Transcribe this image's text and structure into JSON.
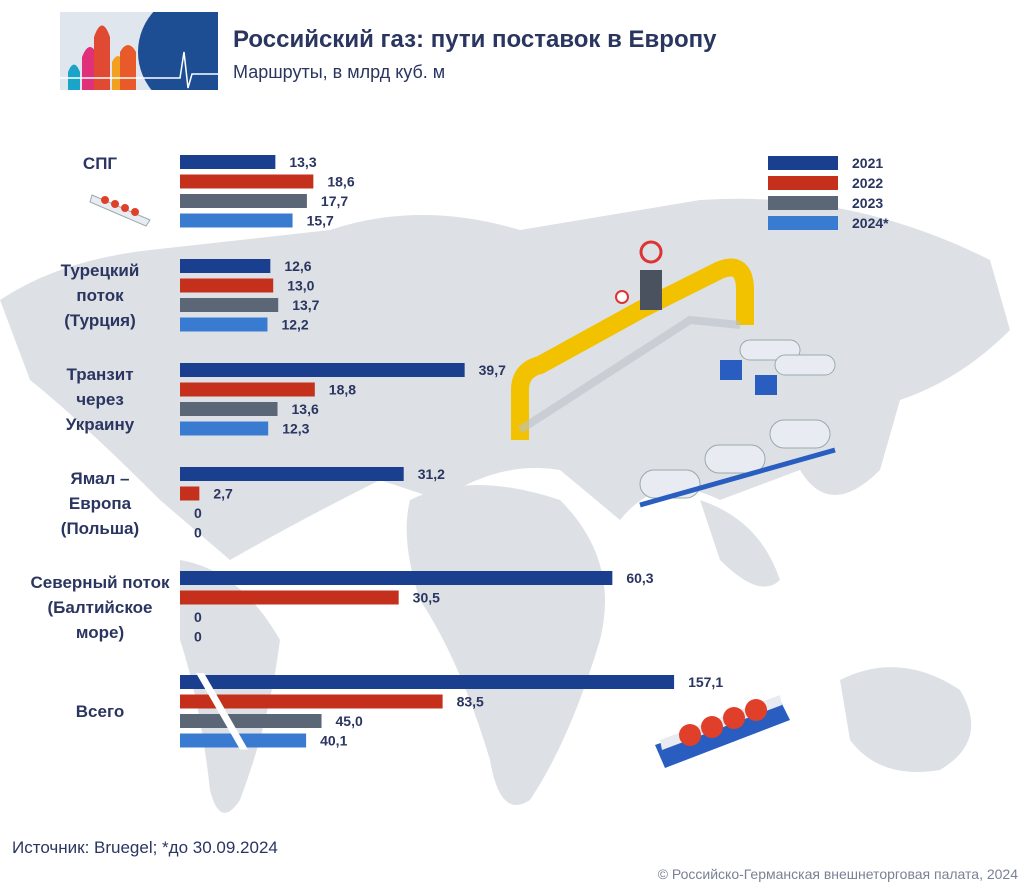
{
  "header": {
    "title": "Российский газ: пути поставок в Европу",
    "subtitle": "Маршруты, в млрд куб. м"
  },
  "chart_data": {
    "type": "bar",
    "title": "Российский газ: пути поставок в Европу",
    "subtitle": "Маршруты, в млрд куб. м",
    "orientation": "horizontal",
    "categories": [
      "СПГ",
      "Турецкий поток (Турция)",
      "Транзит через Украину",
      "Ямал – Европа (Польша)",
      "Северный поток (Балтийское море)",
      "Всего"
    ],
    "category_lines": [
      [
        "СПГ"
      ],
      [
        "Турецкий",
        "поток",
        "(Турция)"
      ],
      [
        "Транзит",
        "через",
        "Украину"
      ],
      [
        "Ямал –",
        "Европа",
        "(Польша)"
      ],
      [
        "Северный поток",
        "(Балтийское",
        "море)"
      ],
      [
        "Всего"
      ]
    ],
    "series": [
      {
        "name": "2021",
        "color": "#1b3f8f",
        "values": [
          13.3,
          12.6,
          39.7,
          31.2,
          60.3,
          157.1
        ],
        "labels": [
          "13,3",
          "12,6",
          "39,7",
          "31,2",
          "60,3",
          "157,1"
        ]
      },
      {
        "name": "2022",
        "color": "#c5301c",
        "values": [
          18.6,
          13.0,
          18.8,
          2.7,
          30.5,
          83.5
        ],
        "labels": [
          "18,6",
          "13,0",
          "18,8",
          "2,7",
          "30,5",
          "83,5"
        ]
      },
      {
        "name": "2023",
        "color": "#5b6677",
        "values": [
          17.7,
          13.7,
          13.6,
          0,
          0,
          45.0
        ],
        "labels": [
          "17,7",
          "13,7",
          "13,6",
          "0",
          "0",
          "45,0"
        ]
      },
      {
        "name": "2024*",
        "color": "#3a7bd2",
        "values": [
          15.7,
          12.2,
          12.3,
          0,
          0,
          40.1
        ],
        "labels": [
          "15,7",
          "12,2",
          "12,3",
          "0",
          "0",
          "40,1"
        ]
      }
    ],
    "axis_break_on": "Всего",
    "legend": "top-right",
    "grid": false
  },
  "footer": {
    "source": "Источник: Bruegel; *до 30.09.2024",
    "copyright": "© Российско-Германская внешнеторговая палата, 2024"
  }
}
